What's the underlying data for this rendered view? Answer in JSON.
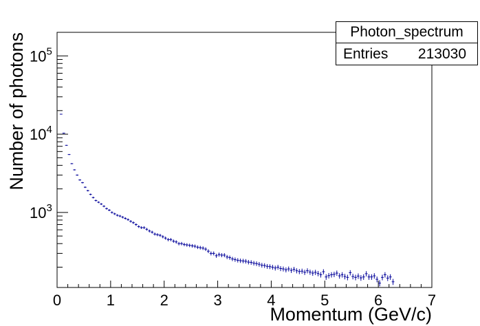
{
  "chart_data": {
    "type": "scatter",
    "xlabel": "Momentum (GeV/c)",
    "ylabel": "Number of photons",
    "xlim": [
      0,
      7
    ],
    "ylim": [
      110,
      200000
    ],
    "yscale": "log",
    "xticks": [
      "0",
      "1",
      "2",
      "3",
      "4",
      "5",
      "6",
      "7"
    ],
    "yticks": [
      {
        "value": 1000,
        "base": "10",
        "exp": "3"
      },
      {
        "value": 10000,
        "base": "10",
        "exp": "4"
      },
      {
        "value": 100000,
        "base": "10",
        "exp": "5"
      }
    ],
    "grid": false,
    "marker_color": "#000099",
    "series": [
      {
        "bin_width": 0.05,
        "x": [
          0.075,
          0.125,
          0.175,
          0.225,
          0.275,
          0.325,
          0.375,
          0.425,
          0.475,
          0.525,
          0.575,
          0.625,
          0.675,
          0.725,
          0.775,
          0.825,
          0.875,
          0.925,
          0.975,
          1.025,
          1.075,
          1.125,
          1.175,
          1.225,
          1.275,
          1.325,
          1.375,
          1.425,
          1.475,
          1.525,
          1.575,
          1.625,
          1.675,
          1.725,
          1.775,
          1.825,
          1.875,
          1.925,
          1.975,
          2.025,
          2.075,
          2.125,
          2.175,
          2.225,
          2.275,
          2.325,
          2.375,
          2.425,
          2.475,
          2.525,
          2.575,
          2.625,
          2.675,
          2.725,
          2.775,
          2.825,
          2.875,
          2.925,
          2.975,
          3.025,
          3.075,
          3.125,
          3.175,
          3.225,
          3.275,
          3.325,
          3.375,
          3.425,
          3.475,
          3.525,
          3.575,
          3.625,
          3.675,
          3.725,
          3.775,
          3.825,
          3.875,
          3.925,
          3.975,
          4.025,
          4.075,
          4.125,
          4.175,
          4.225,
          4.275,
          4.325,
          4.375,
          4.425,
          4.475,
          4.525,
          4.575,
          4.625,
          4.675,
          4.725,
          4.775,
          4.825,
          4.875,
          4.925,
          4.975,
          5.025,
          5.075,
          5.125,
          5.175,
          5.225,
          5.275,
          5.325,
          5.375,
          5.425,
          5.475,
          5.525,
          5.575,
          5.625,
          5.675,
          5.725,
          5.775,
          5.825,
          5.875,
          5.925,
          5.975,
          6.025,
          6.075,
          6.125,
          6.175,
          6.225,
          6.275
        ],
        "y": [
          18000,
          10300,
          7200,
          5500,
          4200,
          3500,
          3000,
          2600,
          2400,
          2100,
          1900,
          1700,
          1550,
          1420,
          1350,
          1280,
          1200,
          1120,
          1070,
          1000,
          960,
          920,
          900,
          870,
          840,
          810,
          770,
          740,
          700,
          660,
          640,
          640,
          610,
          580,
          560,
          530,
          520,
          510,
          490,
          470,
          450,
          450,
          430,
          420,
          400,
          400,
          390,
          385,
          380,
          375,
          370,
          360,
          355,
          350,
          340,
          320,
          300,
          300,
          280,
          290,
          285,
          285,
          270,
          265,
          255,
          250,
          245,
          242,
          240,
          238,
          232,
          230,
          225,
          222,
          218,
          212,
          210,
          205,
          203,
          200,
          195,
          200,
          192,
          190,
          185,
          190,
          182,
          188,
          180,
          176,
          178,
          172,
          180,
          173,
          168,
          172,
          166,
          160,
          175,
          150,
          156,
          160,
          162,
          168,
          155,
          160,
          152,
          148,
          170,
          152,
          148,
          154,
          146,
          150,
          165,
          150,
          150,
          155,
          140,
          125,
          148,
          160,
          145,
          150,
          130
        ]
      }
    ]
  }
}
